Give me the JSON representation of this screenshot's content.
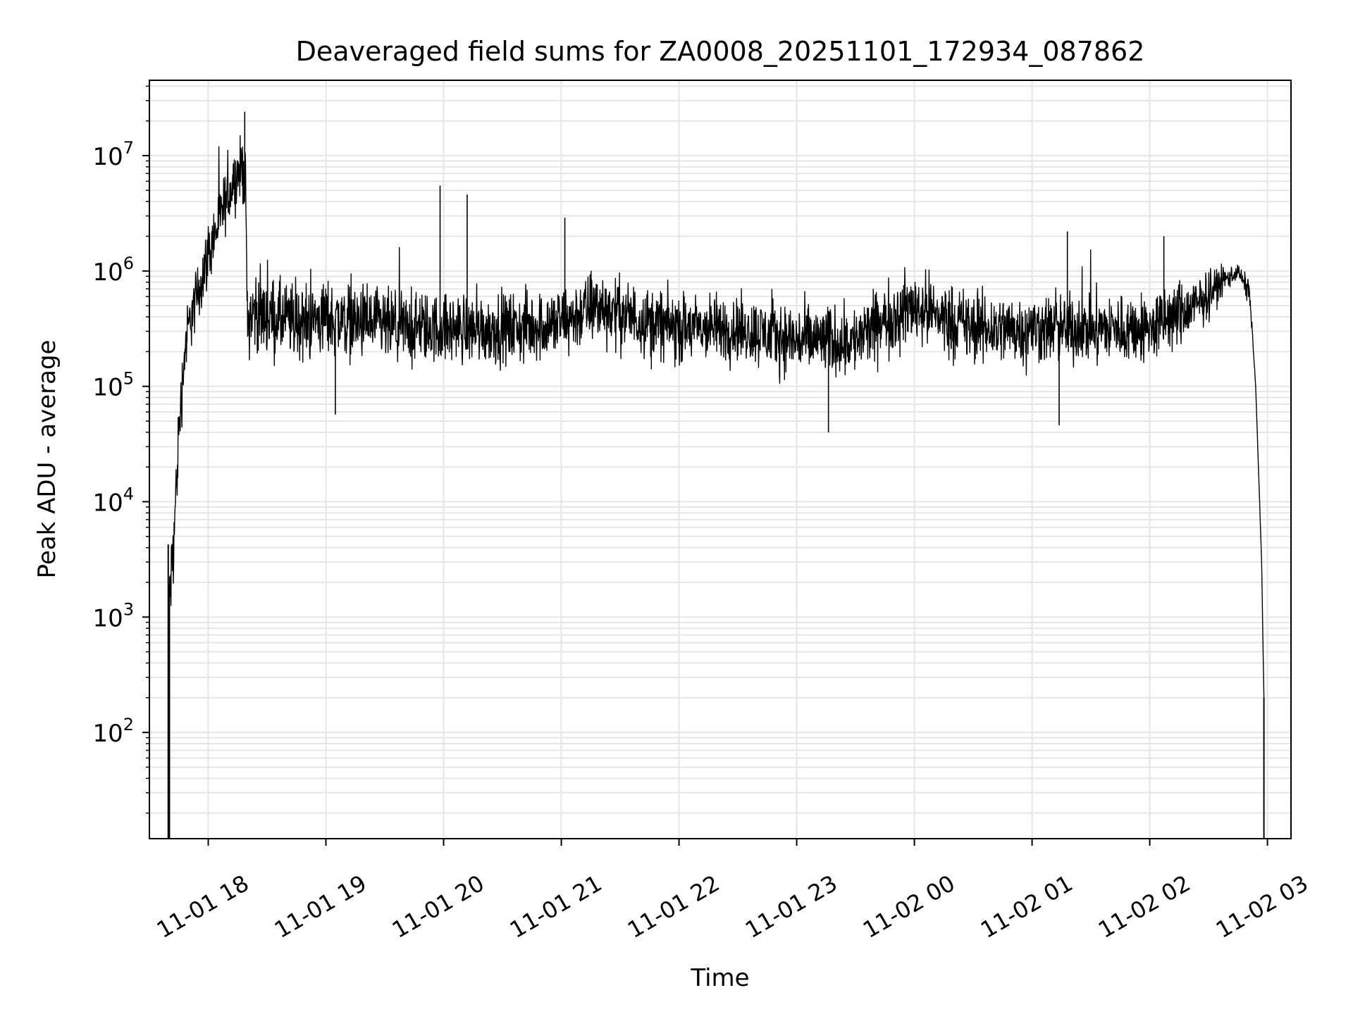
{
  "chart_data": {
    "type": "line",
    "title": "Deaveraged field sums for ZA0008_20251101_172934_087862",
    "xlabel": "Time",
    "ylabel": "Peak ADU - average",
    "yscale": "log",
    "ylim": [
      12,
      45000000
    ],
    "xlim_hours": [
      -0.5,
      9.2
    ],
    "x_tick_labels": [
      "11-01 18",
      "11-01 19",
      "11-01 20",
      "11-01 21",
      "11-01 22",
      "11-01 23",
      "11-02 00",
      "11-02 01",
      "11-02 02",
      "11-02 03"
    ],
    "x_tick_hours": [
      0,
      1,
      2,
      3,
      4,
      5,
      6,
      7,
      8,
      9
    ],
    "y_tick_labels": [
      {
        "base": "10",
        "exp": "2"
      },
      {
        "base": "10",
        "exp": "3"
      },
      {
        "base": "10",
        "exp": "4"
      },
      {
        "base": "10",
        "exp": "5"
      },
      {
        "base": "10",
        "exp": "6"
      },
      {
        "base": "10",
        "exp": "7"
      }
    ],
    "y_tick_values": [
      100,
      1000,
      10000,
      100000,
      1000000,
      10000000
    ],
    "grid": true,
    "line_color": "#000000",
    "grid_color": "#e5e5e5",
    "envelope": {
      "x_hours": [
        -0.34,
        -0.33,
        -0.3,
        -0.25,
        -0.2,
        -0.15,
        -0.1,
        -0.05,
        0.0,
        0.05,
        0.1,
        0.15,
        0.2,
        0.25,
        0.3,
        0.32,
        0.33,
        0.4,
        0.5,
        0.8,
        1.0,
        1.3,
        1.6,
        2.0,
        2.3,
        2.6,
        3.0,
        3.3,
        3.6,
        4.0,
        4.5,
        5.0,
        5.5,
        5.8,
        6.0,
        6.5,
        7.0,
        7.5,
        8.0,
        8.2,
        8.4,
        8.6,
        8.75,
        8.85,
        8.9,
        8.95,
        8.97
      ],
      "log10_values": [
        3.0,
        3.2,
        3.5,
        4.6,
        5.3,
        5.6,
        5.75,
        5.95,
        6.15,
        6.3,
        6.45,
        6.6,
        6.75,
        6.85,
        6.9,
        6.6,
        5.6,
        5.65,
        5.6,
        5.55,
        5.6,
        5.55,
        5.5,
        5.5,
        5.5,
        5.5,
        5.55,
        5.7,
        5.6,
        5.5,
        5.5,
        5.4,
        5.4,
        5.6,
        5.7,
        5.5,
        5.5,
        5.5,
        5.5,
        5.6,
        5.7,
        5.9,
        6.0,
        5.8,
        5.0,
        3.5,
        2.3
      ],
      "noise_log10": [
        0.0,
        0.3,
        0.3,
        0.25,
        0.22,
        0.22,
        0.22,
        0.22,
        0.22,
        0.22,
        0.22,
        0.22,
        0.22,
        0.22,
        0.22,
        0.3,
        0.28,
        0.28,
        0.27,
        0.27,
        0.26,
        0.26,
        0.26,
        0.24,
        0.24,
        0.25,
        0.25,
        0.25,
        0.24,
        0.24,
        0.23,
        0.25,
        0.24,
        0.25,
        0.25,
        0.25,
        0.24,
        0.24,
        0.24,
        0.24,
        0.2,
        0.12,
        0.05,
        0.1,
        0.0,
        0.0,
        0.0
      ]
    },
    "spikes": [
      {
        "x_hours": 0.31,
        "value": 24000000
      },
      {
        "x_hours": 1.97,
        "value": 5500000
      },
      {
        "x_hours": 2.2,
        "value": 4600000
      },
      {
        "x_hours": 3.03,
        "value": 2900000
      },
      {
        "x_hours": 7.3,
        "value": 2200000
      },
      {
        "x_hours": 8.12,
        "value": 2000000
      },
      {
        "x_hours": 5.27,
        "value": 40000
      },
      {
        "x_hours": 7.23,
        "value": 46000
      },
      {
        "x_hours": 1.08,
        "value": 57000
      }
    ],
    "edge_drops_hours": [
      -0.34,
      -0.33,
      8.97
    ]
  }
}
